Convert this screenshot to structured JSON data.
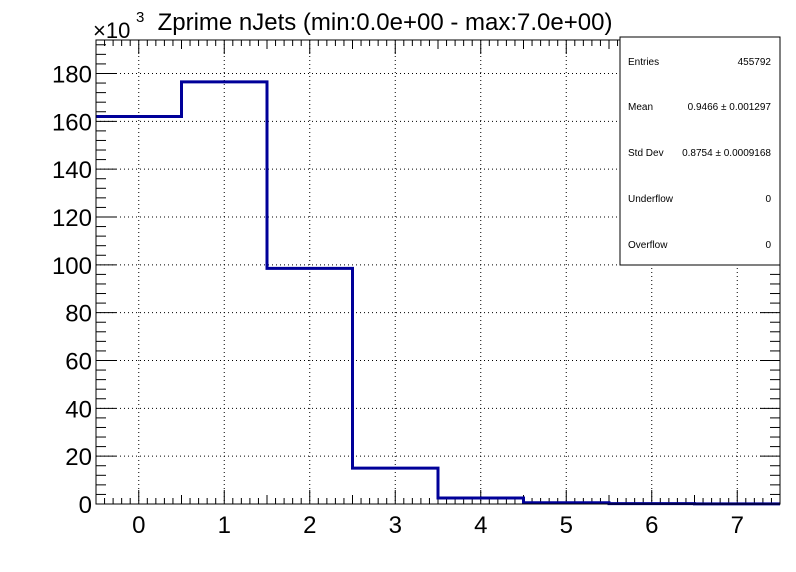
{
  "chart_data": {
    "type": "bar",
    "style": "step-histogram",
    "title": "Zprime nJets (min:0.0e+00 - max:7.0e+00)",
    "xlabel": "",
    "ylabel": "",
    "x_bin_centers": [
      0,
      1,
      2,
      3,
      4,
      5,
      6,
      7
    ],
    "x_range": [
      -0.5,
      7.5
    ],
    "x_ticks": [
      "0",
      "1",
      "2",
      "3",
      "4",
      "5",
      "6",
      "7"
    ],
    "y_values": [
      162000,
      176500,
      98500,
      15000,
      2500,
      500,
      150,
      50
    ],
    "y_range": [
      0,
      194000
    ],
    "y_ticks": [
      "0",
      "20",
      "40",
      "60",
      "80",
      "100",
      "120",
      "140",
      "160",
      "180"
    ],
    "y_scale_multiplier": "×10",
    "y_scale_exponent": "3",
    "grid": true,
    "line_color": "#000099",
    "stats_box": {
      "placement": "top-right",
      "rows": [
        {
          "label": "Entries",
          "value": "455792"
        },
        {
          "label": "Mean",
          "value": "0.9466 ± 0.001297"
        },
        {
          "label": "Std Dev",
          "value": "0.8754 ± 0.0009168"
        },
        {
          "label": "Underflow",
          "value": "0"
        },
        {
          "label": "Overflow",
          "value": "0"
        }
      ]
    }
  }
}
